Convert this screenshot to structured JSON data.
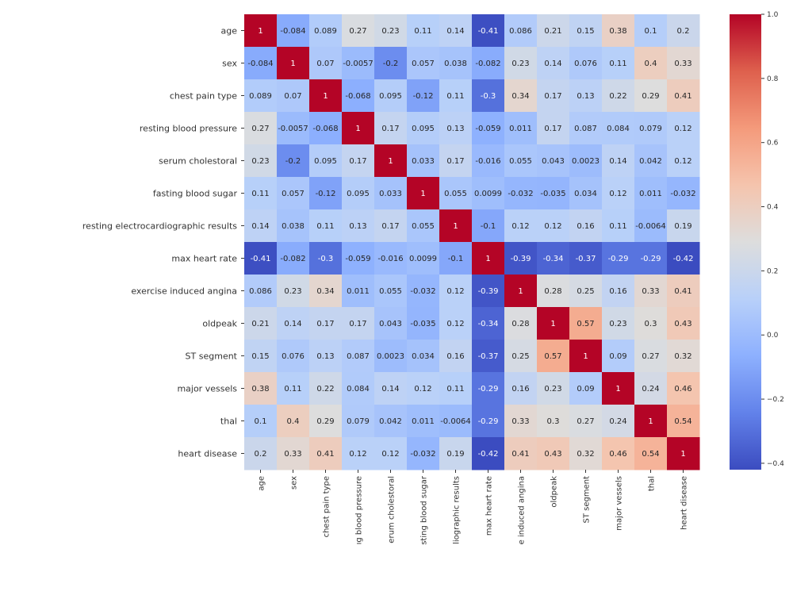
{
  "chart_data": {
    "type": "heatmap",
    "title": "",
    "colormap": "coolwarm",
    "row_labels": [
      "age",
      "sex",
      "chest pain type",
      "resting blood pressure",
      "serum cholestoral",
      "fasting blood sugar",
      "resting electrocardiographic results",
      "max heart rate",
      "exercise induced angina",
      "oldpeak",
      "ST segment",
      "major vessels",
      "thal",
      "heart disease"
    ],
    "col_labels": [
      "age",
      "sex",
      "chest pain type",
      "ıg blood pressure",
      "erum cholestoral",
      "sting blood sugar",
      "liographic results",
      "max heart rate",
      "e induced angina",
      "oldpeak",
      "ST segment",
      "major vessels",
      "thal",
      "heart disease"
    ],
    "values": [
      [
        1,
        -0.084,
        0.089,
        0.27,
        0.23,
        0.11,
        0.14,
        -0.41,
        0.086,
        0.21,
        0.15,
        0.38,
        0.1,
        0.2
      ],
      [
        -0.084,
        1,
        0.07,
        -0.0057,
        -0.2,
        0.057,
        0.038,
        -0.082,
        0.23,
        0.14,
        0.076,
        0.11,
        0.4,
        0.33
      ],
      [
        0.089,
        0.07,
        1,
        -0.068,
        0.095,
        -0.12,
        0.11,
        -0.3,
        0.34,
        0.17,
        0.13,
        0.22,
        0.29,
        0.41
      ],
      [
        0.27,
        -0.0057,
        -0.068,
        1,
        0.17,
        0.095,
        0.13,
        -0.059,
        0.011,
        0.17,
        0.087,
        0.084,
        0.079,
        0.12
      ],
      [
        0.23,
        -0.2,
        0.095,
        0.17,
        1,
        0.033,
        0.17,
        -0.016,
        0.055,
        0.043,
        0.0023,
        0.14,
        0.042,
        0.12
      ],
      [
        0.11,
        0.057,
        -0.12,
        0.095,
        0.033,
        1,
        0.055,
        0.0099,
        -0.032,
        -0.035,
        0.034,
        0.12,
        0.011,
        -0.032
      ],
      [
        0.14,
        0.038,
        0.11,
        0.13,
        0.17,
        0.055,
        1,
        -0.1,
        0.12,
        0.12,
        0.16,
        0.11,
        -0.0064,
        0.19
      ],
      [
        -0.41,
        -0.082,
        -0.3,
        -0.059,
        -0.016,
        0.0099,
        -0.1,
        1,
        -0.39,
        -0.34,
        -0.37,
        -0.29,
        -0.29,
        -0.42
      ],
      [
        0.086,
        0.23,
        0.34,
        0.011,
        0.055,
        -0.032,
        0.12,
        -0.39,
        1,
        0.28,
        0.25,
        0.16,
        0.33,
        0.41
      ],
      [
        0.21,
        0.14,
        0.17,
        0.17,
        0.043,
        -0.035,
        0.12,
        -0.34,
        0.28,
        1,
        0.57,
        0.23,
        0.3,
        0.43
      ],
      [
        0.15,
        0.076,
        0.13,
        0.087,
        0.0023,
        0.034,
        0.16,
        -0.37,
        0.25,
        0.57,
        1,
        0.09,
        0.27,
        0.32
      ],
      [
        0.38,
        0.11,
        0.22,
        0.084,
        0.14,
        0.12,
        0.11,
        -0.29,
        0.16,
        0.23,
        0.09,
        1,
        0.24,
        0.46
      ],
      [
        0.1,
        0.4,
        0.29,
        0.079,
        0.042,
        0.011,
        -0.0064,
        -0.29,
        0.33,
        0.3,
        0.27,
        0.24,
        1,
        0.54
      ],
      [
        0.2,
        0.33,
        0.41,
        0.12,
        0.12,
        -0.032,
        0.19,
        -0.42,
        0.41,
        0.43,
        0.32,
        0.46,
        0.54,
        1
      ]
    ],
    "value_labels": [
      [
        "1",
        "-0.084",
        "0.089",
        "0.27",
        "0.23",
        "0.11",
        "0.14",
        "-0.41",
        "0.086",
        "0.21",
        "0.15",
        "0.38",
        "0.1",
        "0.2"
      ],
      [
        "-0.084",
        "1",
        "0.07",
        "-0.0057",
        "-0.2",
        "0.057",
        "0.038",
        "-0.082",
        "0.23",
        "0.14",
        "0.076",
        "0.11",
        "0.4",
        "0.33"
      ],
      [
        "0.089",
        "0.07",
        "1",
        "-0.068",
        "0.095",
        "-0.12",
        "0.11",
        "-0.3",
        "0.34",
        "0.17",
        "0.13",
        "0.22",
        "0.29",
        "0.41"
      ],
      [
        "0.27",
        "-0.0057",
        "-0.068",
        "1",
        "0.17",
        "0.095",
        "0.13",
        "-0.059",
        "0.011",
        "0.17",
        "0.087",
        "0.084",
        "0.079",
        "0.12"
      ],
      [
        "0.23",
        "-0.2",
        "0.095",
        "0.17",
        "1",
        "0.033",
        "0.17",
        "-0.016",
        "0.055",
        "0.043",
        "0.0023",
        "0.14",
        "0.042",
        "0.12"
      ],
      [
        "0.11",
        "0.057",
        "-0.12",
        "0.095",
        "0.033",
        "1",
        "0.055",
        "0.0099",
        "-0.032",
        "-0.035",
        "0.034",
        "0.12",
        "0.011",
        "-0.032"
      ],
      [
        "0.14",
        "0.038",
        "0.11",
        "0.13",
        "0.17",
        "0.055",
        "1",
        "-0.1",
        "0.12",
        "0.12",
        "0.16",
        "0.11",
        "-0.0064",
        "0.19"
      ],
      [
        "-0.41",
        "-0.082",
        "-0.3",
        "-0.059",
        "-0.016",
        "0.0099",
        "-0.1",
        "1",
        "-0.39",
        "-0.34",
        "-0.37",
        "-0.29",
        "-0.29",
        "-0.42"
      ],
      [
        "0.086",
        "0.23",
        "0.34",
        "0.011",
        "0.055",
        "-0.032",
        "0.12",
        "-0.39",
        "1",
        "0.28",
        "0.25",
        "0.16",
        "0.33",
        "0.41"
      ],
      [
        "0.21",
        "0.14",
        "0.17",
        "0.17",
        "0.043",
        "-0.035",
        "0.12",
        "-0.34",
        "0.28",
        "1",
        "0.57",
        "0.23",
        "0.3",
        "0.43"
      ],
      [
        "0.15",
        "0.076",
        "0.13",
        "0.087",
        "0.0023",
        "0.034",
        "0.16",
        "-0.37",
        "0.25",
        "0.57",
        "1",
        "0.09",
        "0.27",
        "0.32"
      ],
      [
        "0.38",
        "0.11",
        "0.22",
        "0.084",
        "0.14",
        "0.12",
        "0.11",
        "-0.29",
        "0.16",
        "0.23",
        "0.09",
        "1",
        "0.24",
        "0.46"
      ],
      [
        "0.1",
        "0.4",
        "0.29",
        "0.079",
        "0.042",
        "0.011",
        "-0.0064",
        "-0.29",
        "0.33",
        "0.3",
        "0.27",
        "0.24",
        "1",
        "0.54"
      ],
      [
        "0.2",
        "0.33",
        "0.41",
        "0.12",
        "0.12",
        "-0.032",
        "0.19",
        "-0.42",
        "0.41",
        "0.43",
        "0.32",
        "0.46",
        "0.54",
        "1"
      ]
    ],
    "vmin": -0.42,
    "vmax": 1.0,
    "colorbar_ticks": [
      1.0,
      0.8,
      0.6,
      0.4,
      0.2,
      0.0,
      -0.2,
      -0.4
    ],
    "colorbar_tick_labels": [
      "1.0",
      "0.8",
      "0.6",
      "0.4",
      "0.2",
      "0.0",
      "−0.2",
      "−0.4"
    ],
    "colorbar_placement": "right"
  }
}
